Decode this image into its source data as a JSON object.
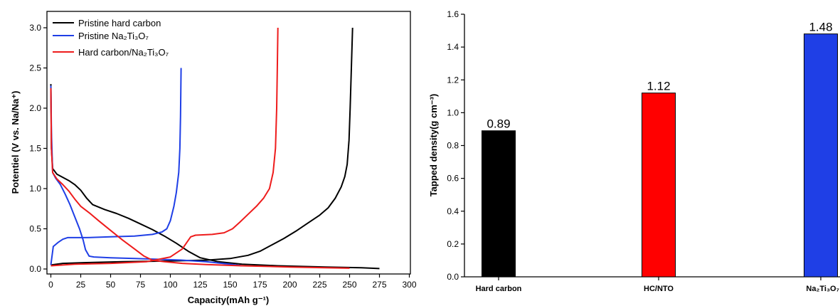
{
  "chart_data": [
    {
      "type": "line",
      "xlabel": "Capacity(mAh g⁻¹)",
      "ylabel": "Potentiel (V vs. Na/Na⁺)",
      "xlim": [
        0,
        300
      ],
      "ylim": [
        0,
        3.0
      ],
      "xticks": [
        "0",
        "25",
        "50",
        "75",
        "100",
        "125",
        "150",
        "175",
        "200",
        "225",
        "250",
        "275",
        "300"
      ],
      "yticks": [
        "0.0",
        "0.5",
        "1.0",
        "1.5",
        "2.0",
        "2.5",
        "3.0"
      ],
      "legend_position": "top-left",
      "series": [
        {
          "name": "Pristine hard carbon",
          "color": "#000000",
          "discharge": [
            [
              0,
              2.3
            ],
            [
              0.5,
              1.5
            ],
            [
              1.5,
              1.25
            ],
            [
              5,
              1.18
            ],
            [
              10,
              1.14
            ],
            [
              15,
              1.1
            ],
            [
              20,
              1.05
            ],
            [
              25,
              0.98
            ],
            [
              30,
              0.88
            ],
            [
              35,
              0.8
            ],
            [
              45,
              0.74
            ],
            [
              55,
              0.69
            ],
            [
              65,
              0.63
            ],
            [
              75,
              0.56
            ],
            [
              85,
              0.49
            ],
            [
              95,
              0.41
            ],
            [
              105,
              0.32
            ],
            [
              115,
              0.22
            ],
            [
              125,
              0.14
            ],
            [
              140,
              0.09
            ],
            [
              160,
              0.06
            ],
            [
              190,
              0.04
            ],
            [
              230,
              0.025
            ],
            [
              260,
              0.015
            ],
            [
              275,
              0.005
            ]
          ],
          "charge": [
            [
              0,
              0.05
            ],
            [
              10,
              0.07
            ],
            [
              30,
              0.08
            ],
            [
              60,
              0.09
            ],
            [
              100,
              0.1
            ],
            [
              130,
              0.11
            ],
            [
              150,
              0.13
            ],
            [
              165,
              0.17
            ],
            [
              175,
              0.22
            ],
            [
              185,
              0.3
            ],
            [
              195,
              0.38
            ],
            [
              205,
              0.47
            ],
            [
              215,
              0.57
            ],
            [
              225,
              0.67
            ],
            [
              232,
              0.76
            ],
            [
              238,
              0.88
            ],
            [
              243,
              1.02
            ],
            [
              246,
              1.15
            ],
            [
              248,
              1.3
            ],
            [
              249.5,
              1.6
            ],
            [
              250.5,
              2.0
            ],
            [
              251.5,
              2.5
            ],
            [
              252.5,
              3.0
            ]
          ]
        },
        {
          "name": "Pristine Na₂Ti₃O₇",
          "color": "#1f3fe6",
          "discharge": [
            [
              0,
              2.28
            ],
            [
              0.5,
              1.7
            ],
            [
              1.5,
              1.2
            ],
            [
              4,
              1.13
            ],
            [
              8,
              1.05
            ],
            [
              12,
              0.93
            ],
            [
              16,
              0.8
            ],
            [
              20,
              0.65
            ],
            [
              24,
              0.5
            ],
            [
              27,
              0.36
            ],
            [
              29,
              0.24
            ],
            [
              32,
              0.16
            ],
            [
              36,
              0.15
            ],
            [
              50,
              0.14
            ],
            [
              70,
              0.13
            ],
            [
              90,
              0.12
            ],
            [
              110,
              0.11
            ],
            [
              130,
              0.09
            ],
            [
              150,
              0.06
            ],
            [
              160,
              0.04
            ]
          ],
          "charge": [
            [
              0,
              0.05
            ],
            [
              2,
              0.28
            ],
            [
              6,
              0.33
            ],
            [
              10,
              0.37
            ],
            [
              14,
              0.39
            ],
            [
              30,
              0.39
            ],
            [
              50,
              0.4
            ],
            [
              70,
              0.41
            ],
            [
              85,
              0.43
            ],
            [
              93,
              0.46
            ],
            [
              97,
              0.5
            ],
            [
              100,
              0.6
            ],
            [
              103,
              0.78
            ],
            [
              105,
              0.95
            ],
            [
              107,
              1.2
            ],
            [
              108,
              1.5
            ],
            [
              108.5,
              1.9
            ],
            [
              109,
              2.5
            ]
          ]
        },
        {
          "name": "Hard carbon/Na₂Ti₃O₇",
          "color": "#ee1c1c",
          "discharge": [
            [
              0,
              2.25
            ],
            [
              0.5,
              1.5
            ],
            [
              1.5,
              1.2
            ],
            [
              5,
              1.12
            ],
            [
              10,
              1.05
            ],
            [
              15,
              0.97
            ],
            [
              20,
              0.87
            ],
            [
              25,
              0.78
            ],
            [
              32,
              0.7
            ],
            [
              40,
              0.6
            ],
            [
              50,
              0.48
            ],
            [
              60,
              0.36
            ],
            [
              70,
              0.25
            ],
            [
              78,
              0.16
            ],
            [
              85,
              0.11
            ],
            [
              95,
              0.09
            ],
            [
              110,
              0.07
            ],
            [
              130,
              0.055
            ],
            [
              160,
              0.04
            ],
            [
              200,
              0.025
            ],
            [
              230,
              0.015
            ],
            [
              250,
              0.01
            ]
          ],
          "charge": [
            [
              0,
              0.04
            ],
            [
              20,
              0.06
            ],
            [
              50,
              0.07
            ],
            [
              80,
              0.09
            ],
            [
              100,
              0.15
            ],
            [
              110,
              0.25
            ],
            [
              117,
              0.4
            ],
            [
              121,
              0.42
            ],
            [
              135,
              0.43
            ],
            [
              145,
              0.45
            ],
            [
              152,
              0.5
            ],
            [
              158,
              0.58
            ],
            [
              165,
              0.68
            ],
            [
              172,
              0.78
            ],
            [
              178,
              0.88
            ],
            [
              183,
              1.0
            ],
            [
              186,
              1.2
            ],
            [
              188,
              1.5
            ],
            [
              189,
              2.0
            ],
            [
              189.5,
              2.5
            ],
            [
              190,
              3.0
            ]
          ]
        }
      ]
    },
    {
      "type": "bar",
      "ylabel": "Tapped density(g cm⁻³)",
      "ylim": [
        0,
        1.6
      ],
      "yticks": [
        "0.0",
        "0.2",
        "0.4",
        "0.6",
        "0.8",
        "1.0",
        "1.2",
        "1.4",
        "1.6"
      ],
      "categories": [
        "Hard carbon",
        "HC/NTO",
        "Na₂Ti₃O₇"
      ],
      "values": [
        0.89,
        1.12,
        1.48
      ],
      "value_labels": [
        "0.89",
        "1.12",
        "1.48"
      ],
      "colors": [
        "#000000",
        "#ff0000",
        "#1f3fe6"
      ]
    }
  ]
}
